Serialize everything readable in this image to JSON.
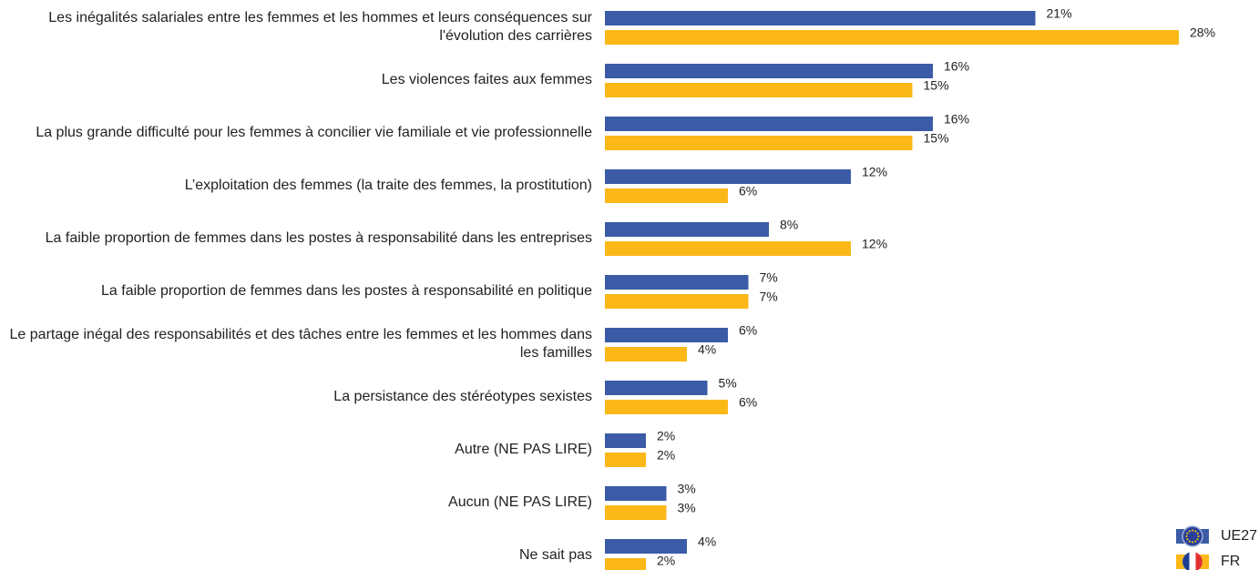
{
  "chart_data": {
    "type": "bar",
    "orientation": "horizontal",
    "categories": [
      "Les inégalités salariales entre les femmes et les hommes et leurs conséquences sur\nl'évolution des carrières",
      "Les violences faites aux femmes",
      "La plus grande difficulté pour les femmes à concilier vie familiale et vie professionnelle",
      "L’exploitation des femmes (la traite des femmes, la prostitution)",
      "La faible proportion de femmes dans les postes à responsabilité dans les entreprises",
      "La faible proportion de femmes dans les postes à responsabilité en politique",
      "Le partage inégal des responsabilités et des tâches entre les femmes et les hommes dans\nles familles",
      "La persistance des stéréotypes sexistes",
      "Autre (NE PAS LIRE)",
      "Aucun (NE PAS LIRE)",
      "Ne sait pas"
    ],
    "series": [
      {
        "name": "UE27",
        "color": "#3b5ba7",
        "values": [
          21,
          16,
          16,
          12,
          8,
          7,
          6,
          5,
          2,
          3,
          4
        ],
        "value_labels": [
          "21%",
          "16%",
          "16%",
          "12%",
          "8%",
          "7%",
          "6%",
          "5%",
          "2%",
          "3%",
          "4%"
        ]
      },
      {
        "name": "FR",
        "color": "#fbb817",
        "values": [
          28,
          15,
          15,
          6,
          12,
          7,
          4,
          6,
          2,
          3,
          2
        ],
        "value_labels": [
          "28%",
          "15%",
          "15%",
          "6%",
          "12%",
          "7%",
          "4%",
          "6%",
          "2%",
          "3%",
          "2%"
        ]
      }
    ],
    "legend": "bottom-right"
  }
}
